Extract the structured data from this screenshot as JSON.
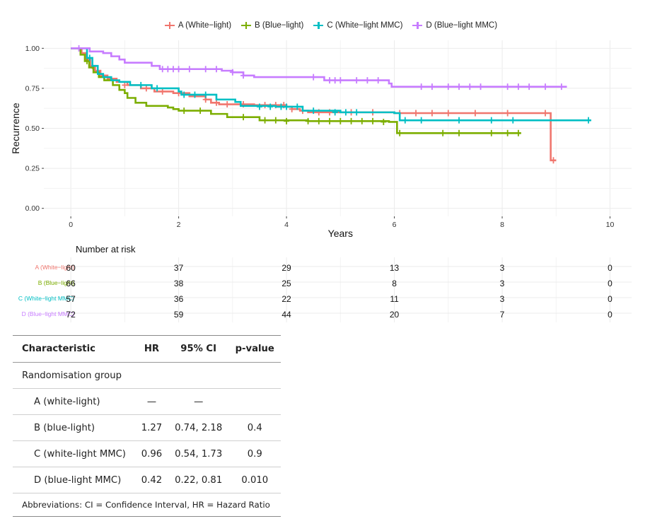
{
  "legend": [
    {
      "label": "A (White−light)",
      "color": "#f0766e"
    },
    {
      "label": "B (Blue−light)",
      "color": "#7cae00"
    },
    {
      "label": "C (White−light MMC)",
      "color": "#00bfc4"
    },
    {
      "label": "D (Blue−light MMC)",
      "color": "#c77cff"
    }
  ],
  "chart_data": {
    "type": "line",
    "step": true,
    "xlabel": "Years",
    "ylabel": "Recurrence",
    "xlim": [
      -0.5,
      10.4
    ],
    "ylim": [
      -0.05,
      1.05
    ],
    "xticks": [
      0,
      2,
      4,
      6,
      8,
      10
    ],
    "yticks": [
      "0.00",
      "0.25",
      "0.50",
      "0.75",
      "1.00"
    ],
    "grid": true,
    "legend_position": "top",
    "series": [
      {
        "name": "A (White−light)",
        "color": "#f0766e",
        "steps": [
          [
            0,
            1.0
          ],
          [
            0.2,
            0.97
          ],
          [
            0.28,
            0.93
          ],
          [
            0.36,
            0.89
          ],
          [
            0.45,
            0.86
          ],
          [
            0.55,
            0.83
          ],
          [
            0.68,
            0.81
          ],
          [
            0.85,
            0.79
          ],
          [
            1.05,
            0.77
          ],
          [
            1.3,
            0.75
          ],
          [
            1.55,
            0.73
          ],
          [
            1.9,
            0.72
          ],
          [
            2.2,
            0.7
          ],
          [
            2.5,
            0.68
          ],
          [
            2.6,
            0.66
          ],
          [
            2.75,
            0.65
          ],
          [
            3.4,
            0.645
          ],
          [
            4.0,
            0.635
          ],
          [
            4.1,
            0.62
          ],
          [
            4.25,
            0.61
          ],
          [
            4.4,
            0.6
          ],
          [
            6.0,
            0.595
          ],
          [
            8.9,
            0.3
          ]
        ],
        "end": 9.0,
        "censors": [
          [
            0.4,
            0.89
          ],
          [
            1.0,
            0.77
          ],
          [
            1.4,
            0.75
          ],
          [
            1.7,
            0.73
          ],
          [
            2.0,
            0.72
          ],
          [
            2.5,
            0.68
          ],
          [
            2.7,
            0.66
          ],
          [
            2.9,
            0.65
          ],
          [
            3.2,
            0.65
          ],
          [
            3.6,
            0.645
          ],
          [
            3.8,
            0.645
          ],
          [
            3.95,
            0.645
          ],
          [
            4.1,
            0.62
          ],
          [
            4.3,
            0.61
          ],
          [
            4.6,
            0.6
          ],
          [
            4.8,
            0.6
          ],
          [
            5.2,
            0.6
          ],
          [
            5.6,
            0.6
          ],
          [
            6.1,
            0.595
          ],
          [
            6.4,
            0.595
          ],
          [
            6.7,
            0.595
          ],
          [
            7.0,
            0.595
          ],
          [
            7.5,
            0.595
          ],
          [
            8.1,
            0.595
          ],
          [
            8.8,
            0.595
          ],
          [
            8.95,
            0.3
          ]
        ]
      },
      {
        "name": "B (Blue−light)",
        "color": "#7cae00",
        "steps": [
          [
            0,
            1.0
          ],
          [
            0.18,
            0.96
          ],
          [
            0.26,
            0.92
          ],
          [
            0.34,
            0.88
          ],
          [
            0.42,
            0.85
          ],
          [
            0.52,
            0.82
          ],
          [
            0.62,
            0.8
          ],
          [
            0.78,
            0.77
          ],
          [
            0.9,
            0.74
          ],
          [
            1.0,
            0.72
          ],
          [
            1.05,
            0.69
          ],
          [
            1.2,
            0.66
          ],
          [
            1.4,
            0.64
          ],
          [
            1.8,
            0.63
          ],
          [
            1.9,
            0.62
          ],
          [
            2.0,
            0.61
          ],
          [
            2.6,
            0.59
          ],
          [
            2.9,
            0.57
          ],
          [
            3.5,
            0.55
          ],
          [
            4.4,
            0.545
          ],
          [
            5.9,
            0.54
          ],
          [
            6.05,
            0.47
          ]
        ],
        "end": 8.35,
        "censors": [
          [
            0.3,
            0.92
          ],
          [
            2.1,
            0.61
          ],
          [
            2.4,
            0.61
          ],
          [
            3.2,
            0.57
          ],
          [
            3.6,
            0.55
          ],
          [
            3.8,
            0.55
          ],
          [
            4.0,
            0.545
          ],
          [
            4.4,
            0.545
          ],
          [
            4.6,
            0.545
          ],
          [
            4.8,
            0.545
          ],
          [
            5.0,
            0.545
          ],
          [
            5.2,
            0.545
          ],
          [
            5.4,
            0.545
          ],
          [
            5.6,
            0.545
          ],
          [
            5.8,
            0.54
          ],
          [
            6.1,
            0.47
          ],
          [
            6.9,
            0.47
          ],
          [
            7.2,
            0.47
          ],
          [
            7.8,
            0.47
          ],
          [
            8.1,
            0.47
          ],
          [
            8.3,
            0.47
          ]
        ]
      },
      {
        "name": "C (White−light MMC)",
        "color": "#00bfc4",
        "steps": [
          [
            0,
            1.0
          ],
          [
            0.3,
            0.94
          ],
          [
            0.4,
            0.89
          ],
          [
            0.5,
            0.84
          ],
          [
            0.6,
            0.82
          ],
          [
            0.75,
            0.8
          ],
          [
            0.9,
            0.79
          ],
          [
            1.1,
            0.77
          ],
          [
            1.5,
            0.75
          ],
          [
            2.0,
            0.73
          ],
          [
            2.05,
            0.71
          ],
          [
            2.7,
            0.68
          ],
          [
            3.05,
            0.665
          ],
          [
            3.15,
            0.64
          ],
          [
            3.8,
            0.635
          ],
          [
            4.3,
            0.61
          ],
          [
            5.0,
            0.6
          ],
          [
            6.0,
            0.595
          ],
          [
            6.1,
            0.55
          ]
        ],
        "end": 9.65,
        "censors": [
          [
            0.35,
            0.94
          ],
          [
            1.3,
            0.77
          ],
          [
            1.6,
            0.75
          ],
          [
            2.1,
            0.71
          ],
          [
            2.3,
            0.71
          ],
          [
            2.5,
            0.71
          ],
          [
            3.5,
            0.635
          ],
          [
            3.7,
            0.635
          ],
          [
            3.9,
            0.635
          ],
          [
            4.0,
            0.635
          ],
          [
            4.2,
            0.635
          ],
          [
            4.5,
            0.61
          ],
          [
            4.9,
            0.6
          ],
          [
            5.1,
            0.6
          ],
          [
            5.3,
            0.6
          ],
          [
            6.2,
            0.55
          ],
          [
            6.5,
            0.55
          ],
          [
            7.2,
            0.55
          ],
          [
            7.8,
            0.55
          ],
          [
            8.2,
            0.55
          ],
          [
            9.6,
            0.55
          ]
        ]
      },
      {
        "name": "D (Blue−light MMC)",
        "color": "#c77cff",
        "steps": [
          [
            0,
            1.0
          ],
          [
            0.35,
            0.98
          ],
          [
            0.6,
            0.97
          ],
          [
            0.75,
            0.95
          ],
          [
            0.9,
            0.93
          ],
          [
            1.0,
            0.91
          ],
          [
            1.5,
            0.89
          ],
          [
            1.65,
            0.87
          ],
          [
            2.8,
            0.86
          ],
          [
            3.0,
            0.85
          ],
          [
            3.2,
            0.83
          ],
          [
            3.4,
            0.82
          ],
          [
            4.7,
            0.8
          ],
          [
            5.9,
            0.78
          ],
          [
            5.95,
            0.76
          ]
        ],
        "end": 9.2,
        "censors": [
          [
            0.15,
            1.0
          ],
          [
            1.7,
            0.87
          ],
          [
            1.8,
            0.87
          ],
          [
            1.9,
            0.87
          ],
          [
            2.0,
            0.87
          ],
          [
            2.2,
            0.87
          ],
          [
            2.5,
            0.87
          ],
          [
            2.7,
            0.87
          ],
          [
            3.0,
            0.85
          ],
          [
            3.2,
            0.83
          ],
          [
            4.5,
            0.82
          ],
          [
            4.8,
            0.8
          ],
          [
            4.9,
            0.8
          ],
          [
            5.0,
            0.8
          ],
          [
            5.3,
            0.8
          ],
          [
            5.5,
            0.8
          ],
          [
            5.7,
            0.8
          ],
          [
            6.5,
            0.76
          ],
          [
            6.7,
            0.76
          ],
          [
            7.0,
            0.76
          ],
          [
            7.2,
            0.76
          ],
          [
            7.4,
            0.76
          ],
          [
            7.6,
            0.76
          ],
          [
            8.1,
            0.76
          ],
          [
            8.3,
            0.76
          ],
          [
            8.5,
            0.76
          ],
          [
            8.8,
            0.76
          ],
          [
            9.1,
            0.76
          ]
        ]
      }
    ]
  },
  "risk_table": {
    "title": "Number at risk",
    "times": [
      0,
      2,
      4,
      6,
      8,
      10
    ],
    "rows": [
      {
        "label": "A (White−light)",
        "color": "#f0766e",
        "values": [
          "60",
          "37",
          "29",
          "13",
          "3",
          "0"
        ]
      },
      {
        "label": "B (Blue−light)",
        "color": "#7cae00",
        "values": [
          "66",
          "38",
          "25",
          "8",
          "3",
          "0"
        ]
      },
      {
        "label": "C (White−light MMC)",
        "color": "#00bfc4",
        "values": [
          "57",
          "36",
          "22",
          "11",
          "3",
          "0"
        ]
      },
      {
        "label": "D (Blue−light MMC)",
        "color": "#c77cff",
        "values": [
          "72",
          "59",
          "44",
          "20",
          "7",
          "0"
        ]
      }
    ]
  },
  "hr_table": {
    "headers": {
      "characteristic": "Characteristic",
      "hr": "HR",
      "ci": "95% CI",
      "p": "p-value"
    },
    "group_label": "Randomisation group",
    "rows": [
      {
        "label": "A (white-light)",
        "hr": "—",
        "ci": "—",
        "p": ""
      },
      {
        "label": "B (blue-light)",
        "hr": "1.27",
        "ci": "0.74, 2.18",
        "p": "0.4"
      },
      {
        "label": "C (white-light MMC)",
        "hr": "0.96",
        "ci": "0.54, 1.73",
        "p": "0.9"
      },
      {
        "label": "D (blue-light MMC)",
        "hr": "0.42",
        "ci": "0.22, 0.81",
        "p": "0.010"
      }
    ],
    "footnote": "Abbreviations: CI = Confidence Interval, HR = Hazard Ratio"
  }
}
